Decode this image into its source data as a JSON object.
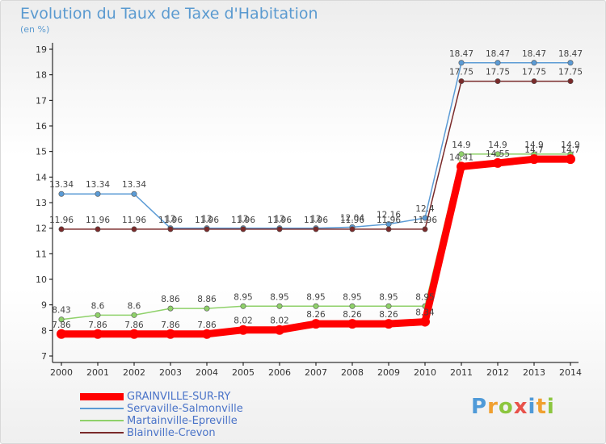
{
  "header": {
    "title": "Evolution du Taux de Taxe d'Habitation",
    "units": "(en %)"
  },
  "logo": {
    "text": "Proxiti"
  },
  "chart_data": {
    "type": "line",
    "title": "Evolution du Taux de Taxe d'Habitation",
    "ylabel": "(en %)",
    "xlabel": "",
    "categories": [
      "2000",
      "2001",
      "2002",
      "2003",
      "2004",
      "2005",
      "2006",
      "2007",
      "2008",
      "2009",
      "2010",
      "2011",
      "2012",
      "2013",
      "2014"
    ],
    "ylim": [
      7,
      19
    ],
    "yticks": [
      "7",
      "8",
      "9",
      "10",
      "11",
      "12",
      "13",
      "14",
      "15",
      "16",
      "17",
      "18",
      "19"
    ],
    "grid": false,
    "legend_position": "bottom-left",
    "series": [
      {
        "name": "GRAINVILLE-SUR-RY",
        "color": "#ff0000",
        "values": [
          7.86,
          7.86,
          7.86,
          7.86,
          7.86,
          8.02,
          8.02,
          8.26,
          8.26,
          8.26,
          8.34,
          14.41,
          14.55,
          14.7,
          14.7
        ],
        "labels": [
          "7.86",
          "7.86",
          "7.86",
          "7.86",
          "7.86",
          "8.02",
          "8.02",
          "8.26",
          "8.26",
          "8.26",
          "8.34",
          "14.41",
          "14.55",
          "14.7",
          "14.7"
        ]
      },
      {
        "name": "Servaville-Salmonville",
        "color": "#5b9bd5",
        "values": [
          13.34,
          13.34,
          13.34,
          12,
          12,
          12,
          12,
          12,
          12.04,
          12.16,
          12.4,
          18.47,
          18.47,
          18.47,
          18.47
        ],
        "labels": [
          "13.34",
          "13.34",
          "13.34",
          "12",
          "12",
          "12",
          "12",
          "12",
          "12.04",
          "12.16",
          "12.4",
          "18.47",
          "18.47",
          "18.47",
          "18.47"
        ]
      },
      {
        "name": "Martainville-Epreville",
        "color": "#8fd16a",
        "values": [
          8.43,
          8.6,
          8.6,
          8.86,
          8.86,
          8.95,
          8.95,
          8.95,
          8.95,
          8.95,
          8.95,
          14.9,
          14.9,
          14.9,
          14.9
        ],
        "labels": [
          "8.43",
          "8.6",
          "8.6",
          "8.86",
          "8.86",
          "8.95",
          "8.95",
          "8.95",
          "8.95",
          "8.95",
          "8.95",
          "14.9",
          "14.9",
          "14.9",
          "14.9"
        ]
      },
      {
        "name": "Blainville-Crevon",
        "color": "#7a2a2a",
        "values": [
          11.96,
          11.96,
          11.96,
          11.96,
          11.96,
          11.96,
          11.96,
          11.96,
          11.96,
          11.96,
          11.96,
          17.75,
          17.75,
          17.75,
          17.75
        ],
        "labels": [
          "11.96",
          "11.96",
          "11.96",
          "11.96",
          "11.96",
          "11.96",
          "11.96",
          "11.96",
          "11.96",
          "11.96",
          "11.96",
          "17.75",
          "17.75",
          "17.75",
          "17.75"
        ]
      }
    ]
  }
}
